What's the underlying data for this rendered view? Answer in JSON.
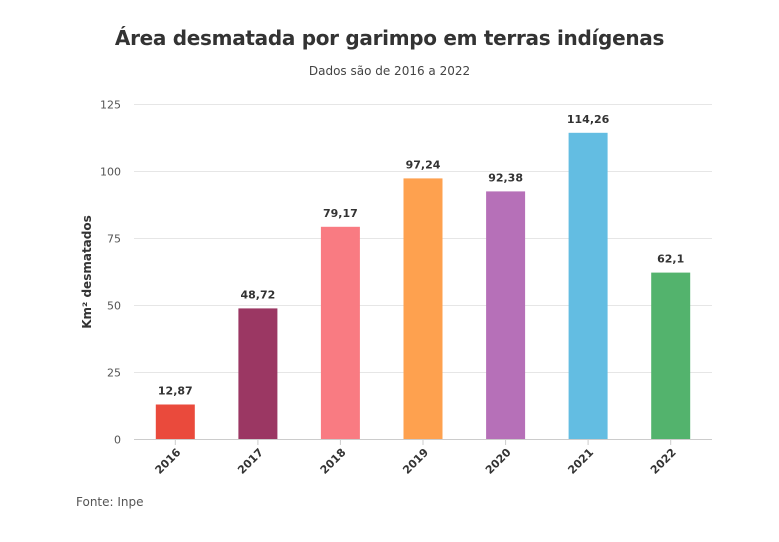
{
  "chart_data": {
    "type": "bar",
    "title": "Área desmatada por garimpo em terras indígenas",
    "subtitle": "Dados são de 2016 a 2022",
    "xlabel": "",
    "ylabel": "Km² desmatados",
    "categories": [
      "2016",
      "2017",
      "2018",
      "2019",
      "2020",
      "2021",
      "2022"
    ],
    "values": [
      12.87,
      48.72,
      79.17,
      97.24,
      92.38,
      114.26,
      62.1
    ],
    "value_labels": [
      "12,87",
      "48,72",
      "79,17",
      "97,24",
      "92,38",
      "114,26",
      "62,1"
    ],
    "colors": [
      "#ea4a3c",
      "#9b3763",
      "#f97b82",
      "#fea14f",
      "#b670b8",
      "#63bde2",
      "#53b36d"
    ],
    "ylim": [
      0,
      125
    ],
    "yticks": [
      0,
      25,
      50,
      75,
      100,
      125
    ],
    "grid": true,
    "legend": "none"
  },
  "source": "Fonte: Inpe"
}
